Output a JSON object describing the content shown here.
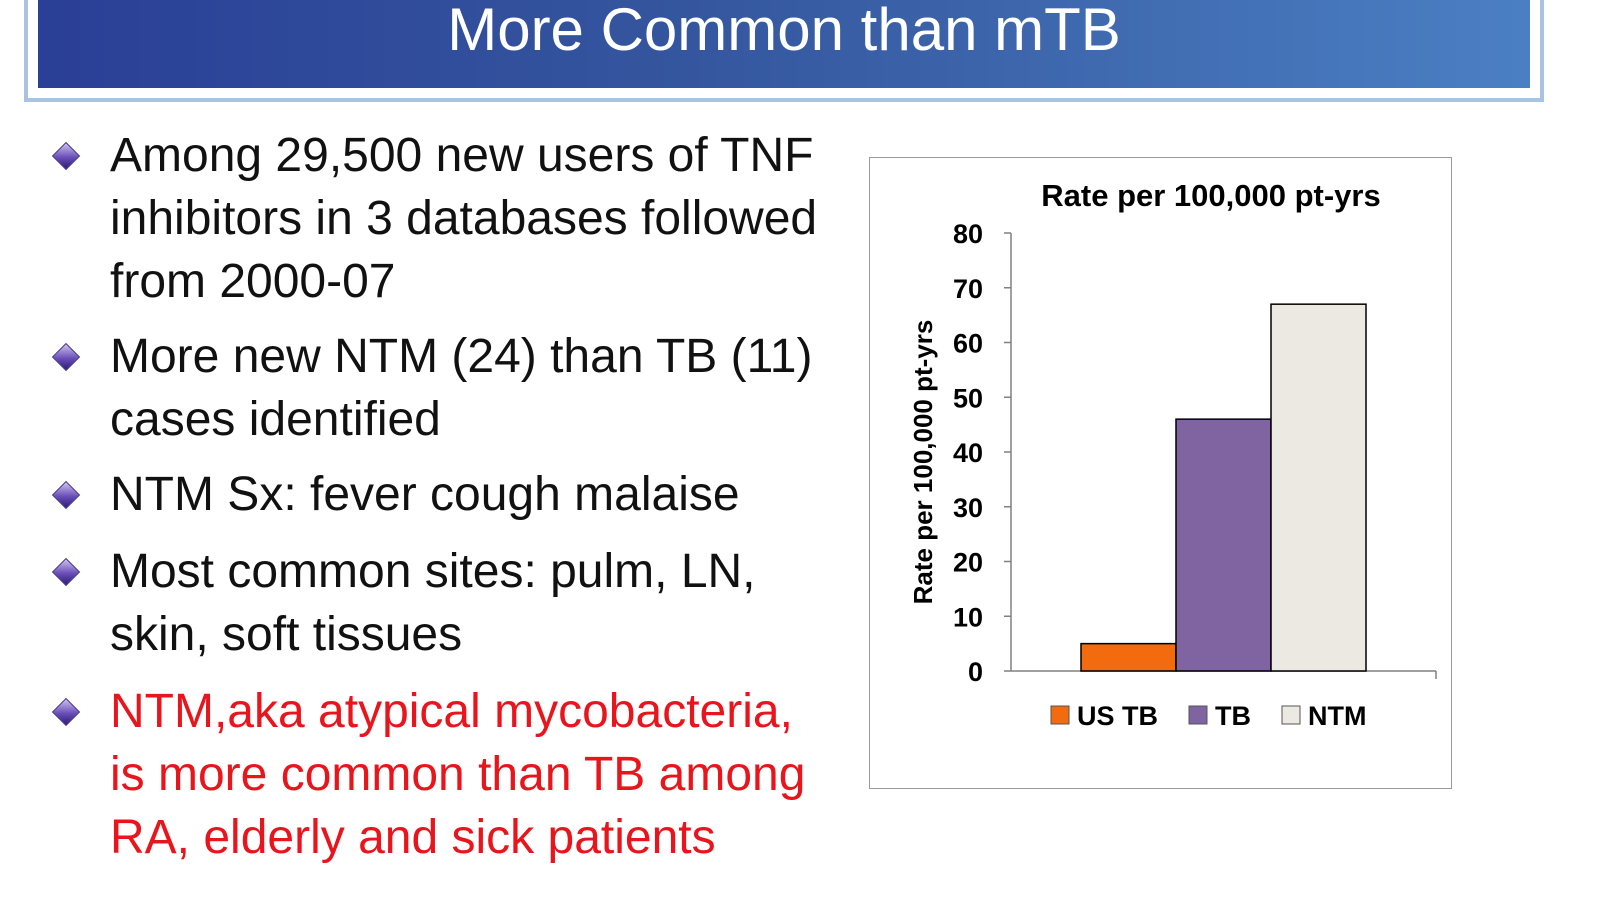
{
  "slide": {
    "title": "More Common than mTB"
  },
  "bullets": [
    {
      "lines": [
        "Among 29,500 new users of TNF",
        "inhibitors in 3 databases followed",
        "from 2000-07"
      ],
      "color": "#111111"
    },
    {
      "lines": [
        "More new NTM (24) than TB (11)",
        "cases identified"
      ],
      "color": "#111111"
    },
    {
      "lines": [
        "NTM Sx: fever cough malaise"
      ],
      "color": "#111111"
    },
    {
      "lines": [
        "Most common sites: pulm, LN,",
        "skin, soft tissues"
      ],
      "color": "#111111"
    },
    {
      "lines": [
        "NTM,aka atypical mycobacteria,",
        "is more common than TB among",
        "RA, elderly and sick patients"
      ],
      "color": "#e8151c"
    }
  ],
  "chart_data": {
    "type": "bar",
    "title": "Rate per 100,000 pt-yrs",
    "ylabel": "Rate per 100,000 pt-yrs",
    "xlabel": "",
    "ylim": [
      0,
      80
    ],
    "yticks": [
      "0",
      "10",
      "20",
      "30",
      "40",
      "50",
      "60",
      "70",
      "80"
    ],
    "grid": false,
    "legend_position": "bottom",
    "series": [
      {
        "name": "US TB",
        "values": [
          5
        ],
        "color": "#f26b0f"
      },
      {
        "name": "TB",
        "values": [
          46
        ],
        "color": "#8064a2"
      },
      {
        "name": "NTM",
        "values": [
          67
        ],
        "color": "#ebe9e1"
      }
    ]
  }
}
